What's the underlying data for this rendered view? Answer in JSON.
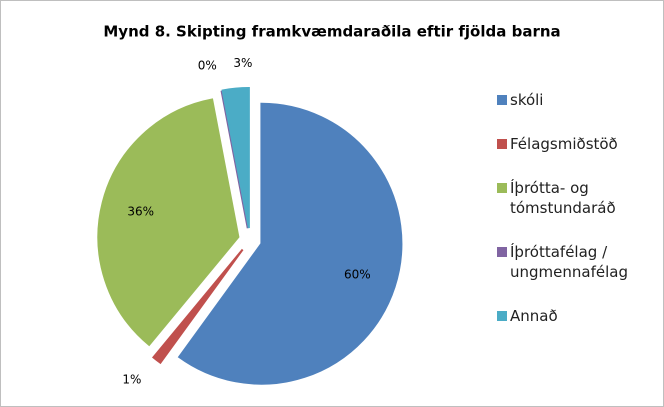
{
  "chart_data": {
    "type": "pie",
    "title": "Mynd 8. Skipting framkvæmdaraðila eftir fjölda barna",
    "categories": [
      "skóli",
      "Félagsmiðstöð",
      "Íþrótta- og tómstundaráð",
      "Íþróttafélag / ungmennafélag",
      "Annað"
    ],
    "values": [
      60,
      1,
      36,
      0,
      3
    ],
    "value_labels": [
      "60%",
      "1%",
      "36%",
      "0%",
      "3%"
    ],
    "colors": [
      "#4f81bd",
      "#c0504d",
      "#9bbb59",
      "#8064a2",
      "#4bacc6"
    ],
    "legend": "right"
  }
}
